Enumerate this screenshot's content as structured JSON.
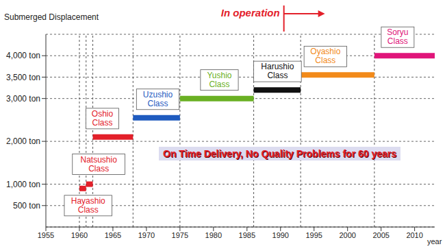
{
  "chart_data": {
    "type": "gantt",
    "y_label": "Submerged Displacement",
    "x_label": "year",
    "xlim": [
      1955,
      2013
    ],
    "xticks": [
      1955,
      1960,
      1965,
      1970,
      1975,
      1980,
      1985,
      1990,
      1995,
      2000,
      2005,
      2010
    ],
    "ylim": [
      0,
      4500
    ],
    "yticks": [
      {
        "value": 500,
        "label": "500 ton"
      },
      {
        "value": 1000,
        "label": "1,000 ton"
      },
      {
        "value": 2000,
        "label": "2,000 ton"
      },
      {
        "value": 3000,
        "label": "3,000 ton"
      },
      {
        "value": 3500,
        "label": "3,500 ton"
      },
      {
        "value": 4000,
        "label": "4,000 ton"
      }
    ],
    "grid": true,
    "annotations": [
      {
        "text": "In operation",
        "x": 1990.5
      },
      {
        "text": "On Time Delivery, No Quality Problems for 60 years"
      }
    ],
    "series": [
      {
        "name": "Hayashio Class",
        "color": "#e3202a",
        "x": [
          1960,
          1961
        ],
        "values": [
          900,
          900
        ]
      },
      {
        "name": "Natsushio Class",
        "color": "#e3202a",
        "x": [
          1961,
          1962
        ],
        "values": [
          1000,
          1000
        ]
      },
      {
        "name": "Oshio Class",
        "color": "#e3202a",
        "x": [
          1962,
          1968
        ],
        "values": [
          2100,
          2100
        ]
      },
      {
        "name": "Uzushio Class",
        "color": "#1f5bbf",
        "x": [
          1968,
          1975
        ],
        "values": [
          2550,
          2550
        ]
      },
      {
        "name": "Yushio Class",
        "color": "#6ab023",
        "x": [
          1975,
          1986
        ],
        "values": [
          3000,
          3000
        ]
      },
      {
        "name": "Harushio Class",
        "color": "#111111",
        "x": [
          1986,
          1993
        ],
        "values": [
          3200,
          3200
        ]
      },
      {
        "name": "Oyashio Class",
        "color": "#f28a1a",
        "x": [
          1993,
          2004
        ],
        "values": [
          3550,
          3550
        ]
      },
      {
        "name": "Soryu Class",
        "color": "#e0157a",
        "x": [
          2004,
          2013
        ],
        "values": [
          4000,
          4000
        ]
      }
    ]
  }
}
